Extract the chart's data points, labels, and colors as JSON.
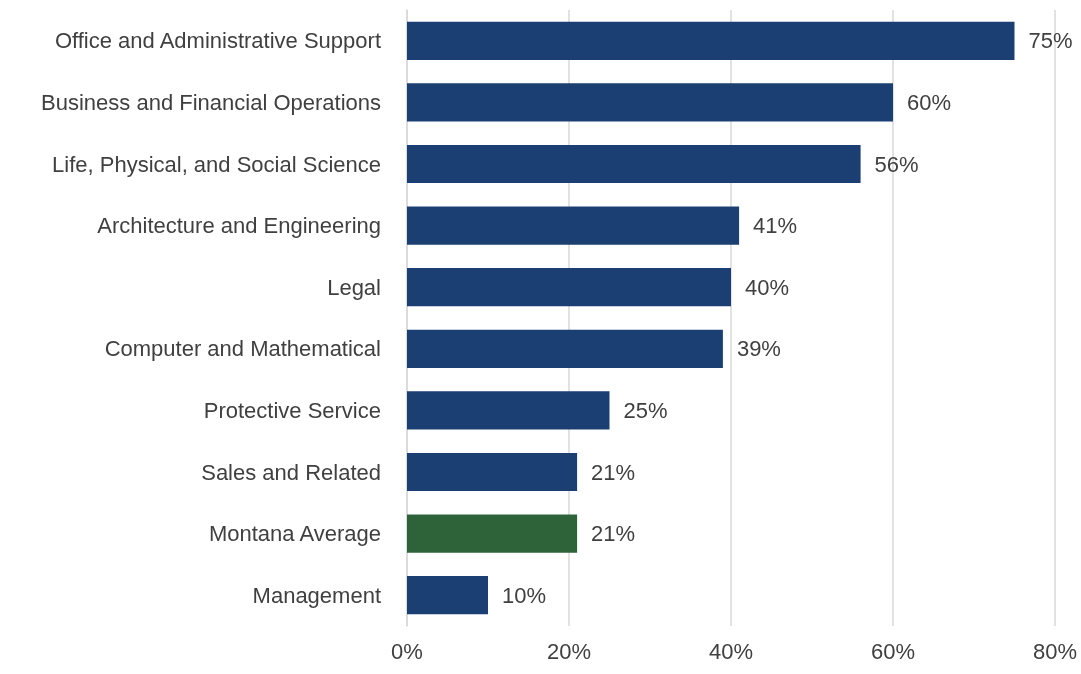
{
  "chart_data": {
    "type": "bar",
    "orientation": "horizontal",
    "categories": [
      "Office and Administrative Support",
      "Business and Financial Operations",
      "Life, Physical, and Social Science",
      "Architecture and Engineering",
      "Legal",
      "Computer and Mathematical",
      "Protective Service",
      "Sales and Related",
      "Montana Average",
      "Management"
    ],
    "values": [
      75,
      60,
      56,
      41,
      40,
      39,
      25,
      21,
      21,
      10
    ],
    "value_labels": [
      "75%",
      "60%",
      "56%",
      "41%",
      "40%",
      "39%",
      "25%",
      "21%",
      "21%",
      "10%"
    ],
    "colors": [
      "#1b3f73",
      "#1b3f73",
      "#1b3f73",
      "#1b3f73",
      "#1b3f73",
      "#1b3f73",
      "#1b3f73",
      "#1b3f73",
      "#2e6239",
      "#1b3f73"
    ],
    "xlim": [
      0,
      80
    ],
    "xticks": [
      {
        "value": 0,
        "label": "0%"
      },
      {
        "value": 20,
        "label": "20%"
      },
      {
        "value": 40,
        "label": "40%"
      },
      {
        "value": 60,
        "label": "60%"
      },
      {
        "value": 80,
        "label": "80%"
      }
    ],
    "grid": "x"
  }
}
